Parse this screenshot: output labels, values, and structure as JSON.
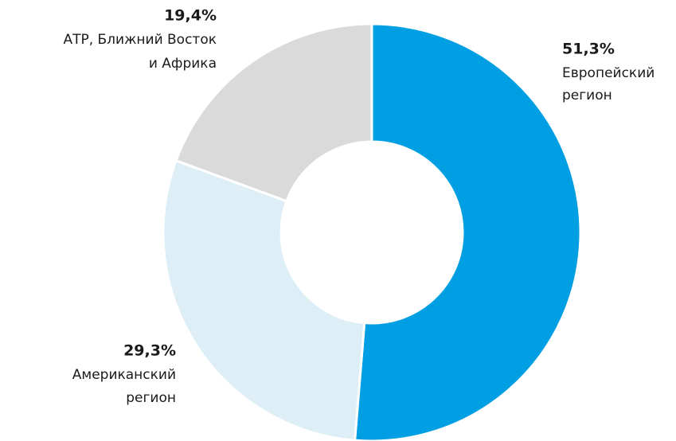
{
  "chart_data": {
    "type": "pie",
    "categories": [
      [
        "Европейский",
        "регион"
      ],
      [
        "Американский",
        "регион"
      ],
      [
        "АТР, Ближний Восток",
        "и Африка"
      ]
    ],
    "values": [
      51.3,
      29.3,
      19.4
    ],
    "value_labels": [
      "51,3%",
      "29,3%",
      "19,4%"
    ],
    "colors": [
      "#009fe3",
      "#ddeef6",
      "#dadada"
    ]
  }
}
